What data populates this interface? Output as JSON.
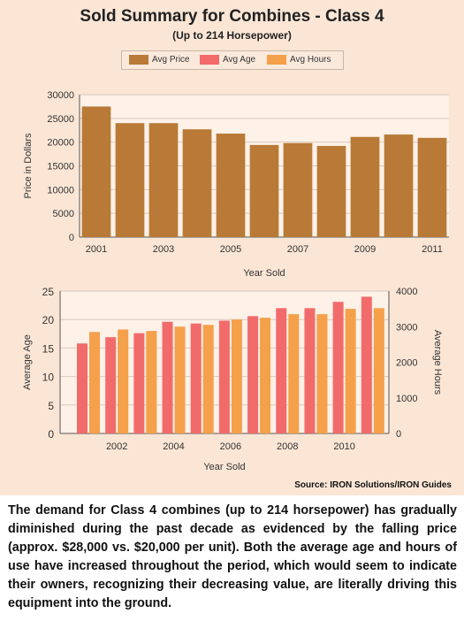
{
  "header": {
    "title": "Sold Summary for Combines - Class 4",
    "subtitle": "(Up to 214 Horsepower)"
  },
  "legend": {
    "items": [
      {
        "label": "Avg Price",
        "color": "#b87a36"
      },
      {
        "label": "Avg Age",
        "color": "#f26b6b"
      },
      {
        "label": "Avg Hours",
        "color": "#f5a04a"
      }
    ]
  },
  "chart_data": [
    {
      "type": "bar",
      "x": [
        2001,
        2002,
        2003,
        2004,
        2005,
        2006,
        2007,
        2008,
        2009,
        2010,
        2011
      ],
      "x_tick_labels": [
        "2001",
        "2003",
        "2005",
        "2007",
        "2009",
        "2011"
      ],
      "series": [
        {
          "name": "Avg Price",
          "values": [
            27500,
            24000,
            24000,
            22700,
            21800,
            19400,
            19800,
            19200,
            21100,
            21600,
            20900
          ]
        }
      ],
      "xlabel": "Year Sold",
      "ylabel": "Price in Dollars",
      "ylim": [
        0,
        30000
      ],
      "yticks": [
        0,
        5000,
        10000,
        15000,
        20000,
        25000,
        30000
      ],
      "grid": true
    },
    {
      "type": "bar",
      "x": [
        2001,
        2002,
        2003,
        2004,
        2005,
        2006,
        2007,
        2008,
        2009,
        2010,
        2011
      ],
      "x_tick_labels": [
        "2002",
        "2004",
        "2006",
        "2008",
        "2010"
      ],
      "series": [
        {
          "name": "Avg Age",
          "axis": "left",
          "values": [
            15.8,
            16.9,
            17.6,
            19.6,
            19.3,
            19.8,
            20.6,
            22.0,
            22.0,
            23.1,
            24.0
          ]
        },
        {
          "name": "Avg Hours",
          "axis": "right",
          "values": [
            2850,
            2920,
            2880,
            3000,
            3050,
            3200,
            3250,
            3350,
            3350,
            3500,
            3520
          ]
        }
      ],
      "xlabel": "Year Sold",
      "ylabel": "Average Age",
      "ylabel_right": "Average Hours",
      "ylim": [
        0,
        25
      ],
      "ylim_right": [
        0,
        4000
      ],
      "yticks": [
        0,
        5,
        10,
        15,
        20,
        25
      ],
      "yticks_right": [
        0,
        1000,
        2000,
        3000,
        4000
      ],
      "grid": true
    }
  ],
  "source": "Source: IRON Solutions/IRON Guides",
  "caption": "The demand for Class 4 combines (up to 214 horsepower) has gradually diminished during the past decade as evidenced by the falling price (approx. $28,000 vs. $20,000 per unit). Both the average age and hours of use have increased throughout the period, which would seem to indicate their owners, recognizing their decreasing value, are literally driving this equipment into the ground."
}
